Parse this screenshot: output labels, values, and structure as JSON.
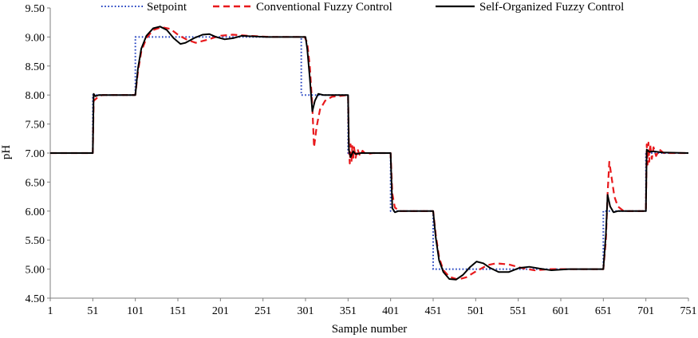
{
  "chart_data": {
    "type": "line",
    "xlabel": "Sample number",
    "ylabel": "pH",
    "xlim": [
      1,
      751
    ],
    "ylim": [
      4.5,
      9.5
    ],
    "x_ticks": [
      "1",
      "51",
      "101",
      "151",
      "201",
      "251",
      "301",
      "351",
      "401",
      "451",
      "501",
      "551",
      "601",
      "651",
      "701",
      "751"
    ],
    "y_ticks": [
      "4.50",
      "5.00",
      "5.50",
      "6.00",
      "6.50",
      "7.00",
      "7.50",
      "8.00",
      "8.50",
      "9.00",
      "9.50"
    ],
    "grid": false,
    "legend_position": "top",
    "series": [
      {
        "name": "Setpoint",
        "color": "#1f3fbf",
        "dash": "dotted",
        "points": [
          [
            1,
            7
          ],
          [
            51,
            7
          ],
          [
            51,
            8
          ],
          [
            101,
            8
          ],
          [
            101,
            9
          ],
          [
            296,
            9
          ],
          [
            296,
            8
          ],
          [
            351,
            8
          ],
          [
            351,
            7
          ],
          [
            401,
            7
          ],
          [
            401,
            6
          ],
          [
            451,
            6
          ],
          [
            451,
            5
          ],
          [
            651,
            5
          ],
          [
            651,
            6
          ],
          [
            701,
            6
          ],
          [
            701,
            7
          ],
          [
            751,
            7
          ]
        ]
      },
      {
        "name": "Conventional Fuzzy Control",
        "color": "#e8191c",
        "dash": "dashed",
        "points": [
          [
            1,
            7
          ],
          [
            51,
            7
          ],
          [
            52,
            7.9
          ],
          [
            56,
            7.95
          ],
          [
            62,
            8
          ],
          [
            101,
            8
          ],
          [
            104,
            8.4
          ],
          [
            108,
            8.75
          ],
          [
            114,
            8.98
          ],
          [
            122,
            9.12
          ],
          [
            132,
            9.17
          ],
          [
            142,
            9.14
          ],
          [
            152,
            9.03
          ],
          [
            162,
            8.95
          ],
          [
            172,
            8.9
          ],
          [
            185,
            8.95
          ],
          [
            200,
            9.02
          ],
          [
            215,
            9.04
          ],
          [
            235,
            9.02
          ],
          [
            260,
            9
          ],
          [
            300,
            9
          ],
          [
            303,
            8.9
          ],
          [
            306,
            8.5
          ],
          [
            309,
            7.8
          ],
          [
            311,
            7.1
          ],
          [
            314,
            7.45
          ],
          [
            318,
            7.75
          ],
          [
            324,
            7.9
          ],
          [
            332,
            7.97
          ],
          [
            351,
            8
          ],
          [
            352,
            7.1
          ],
          [
            353,
            6.82
          ],
          [
            354,
            7.15
          ],
          [
            355,
            6.85
          ],
          [
            356,
            7.12
          ],
          [
            357,
            6.88
          ],
          [
            358,
            7.1
          ],
          [
            360,
            6.92
          ],
          [
            362,
            7.07
          ],
          [
            365,
            6.95
          ],
          [
            368,
            7.04
          ],
          [
            372,
            6.98
          ],
          [
            380,
            7
          ],
          [
            401,
            7
          ],
          [
            403,
            6.3
          ],
          [
            406,
            6.06
          ],
          [
            412,
            6
          ],
          [
            451,
            6
          ],
          [
            454,
            5.6
          ],
          [
            458,
            5.2
          ],
          [
            463,
            4.98
          ],
          [
            470,
            4.87
          ],
          [
            480,
            4.82
          ],
          [
            490,
            4.86
          ],
          [
            500,
            4.95
          ],
          [
            515,
            5.07
          ],
          [
            525,
            5.1
          ],
          [
            540,
            5.08
          ],
          [
            555,
            5.02
          ],
          [
            570,
            4.98
          ],
          [
            590,
            5
          ],
          [
            651,
            5
          ],
          [
            654,
            5.5
          ],
          [
            656,
            6.3
          ],
          [
            658,
            6.85
          ],
          [
            661,
            6.55
          ],
          [
            664,
            6.25
          ],
          [
            668,
            6.08
          ],
          [
            675,
            6
          ],
          [
            701,
            6
          ],
          [
            702,
            7.15
          ],
          [
            703,
            6.8
          ],
          [
            704,
            7.18
          ],
          [
            705,
            6.85
          ],
          [
            706,
            7.15
          ],
          [
            708,
            6.9
          ],
          [
            710,
            7.1
          ],
          [
            713,
            6.95
          ],
          [
            717,
            7.06
          ],
          [
            722,
            7
          ],
          [
            751,
            7
          ]
        ]
      },
      {
        "name": "Self-Organized Fuzzy Control",
        "color": "#000000",
        "dash": "solid",
        "points": [
          [
            1,
            7
          ],
          [
            51,
            7
          ],
          [
            52,
            8.02
          ],
          [
            54,
            7.98
          ],
          [
            58,
            8
          ],
          [
            101,
            8
          ],
          [
            104,
            8.45
          ],
          [
            108,
            8.8
          ],
          [
            114,
            9.02
          ],
          [
            122,
            9.15
          ],
          [
            130,
            9.18
          ],
          [
            138,
            9.12
          ],
          [
            146,
            8.98
          ],
          [
            154,
            8.88
          ],
          [
            160,
            8.9
          ],
          [
            170,
            8.98
          ],
          [
            180,
            9.04
          ],
          [
            188,
            9.05
          ],
          [
            196,
            9
          ],
          [
            206,
            8.96
          ],
          [
            216,
            8.98
          ],
          [
            226,
            9.02
          ],
          [
            240,
            9.01
          ],
          [
            255,
            9
          ],
          [
            301,
            9
          ],
          [
            303,
            8.8
          ],
          [
            306,
            8.3
          ],
          [
            309,
            7.72
          ],
          [
            312,
            7.9
          ],
          [
            316,
            8.02
          ],
          [
            322,
            8
          ],
          [
            351,
            8
          ],
          [
            352,
            7.05
          ],
          [
            354,
            6.93
          ],
          [
            357,
            7.03
          ],
          [
            360,
            6.98
          ],
          [
            366,
            7
          ],
          [
            401,
            7
          ],
          [
            403,
            6.05
          ],
          [
            406,
            5.98
          ],
          [
            410,
            6
          ],
          [
            451,
            6
          ],
          [
            454,
            5.55
          ],
          [
            458,
            5.15
          ],
          [
            463,
            4.95
          ],
          [
            470,
            4.83
          ],
          [
            478,
            4.82
          ],
          [
            486,
            4.9
          ],
          [
            494,
            5.03
          ],
          [
            502,
            5.13
          ],
          [
            510,
            5.1
          ],
          [
            518,
            5.02
          ],
          [
            528,
            4.95
          ],
          [
            540,
            4.95
          ],
          [
            552,
            5.02
          ],
          [
            564,
            5.04
          ],
          [
            576,
            5.01
          ],
          [
            590,
            4.98
          ],
          [
            610,
            5
          ],
          [
            651,
            5
          ],
          [
            654,
            5.6
          ],
          [
            656,
            6.28
          ],
          [
            659,
            6.08
          ],
          [
            663,
            5.98
          ],
          [
            668,
            6
          ],
          [
            701,
            6
          ],
          [
            702,
            7.06
          ],
          [
            705,
            7.02
          ],
          [
            710,
            7.03
          ],
          [
            720,
            7.01
          ],
          [
            751,
            7
          ]
        ]
      }
    ]
  }
}
